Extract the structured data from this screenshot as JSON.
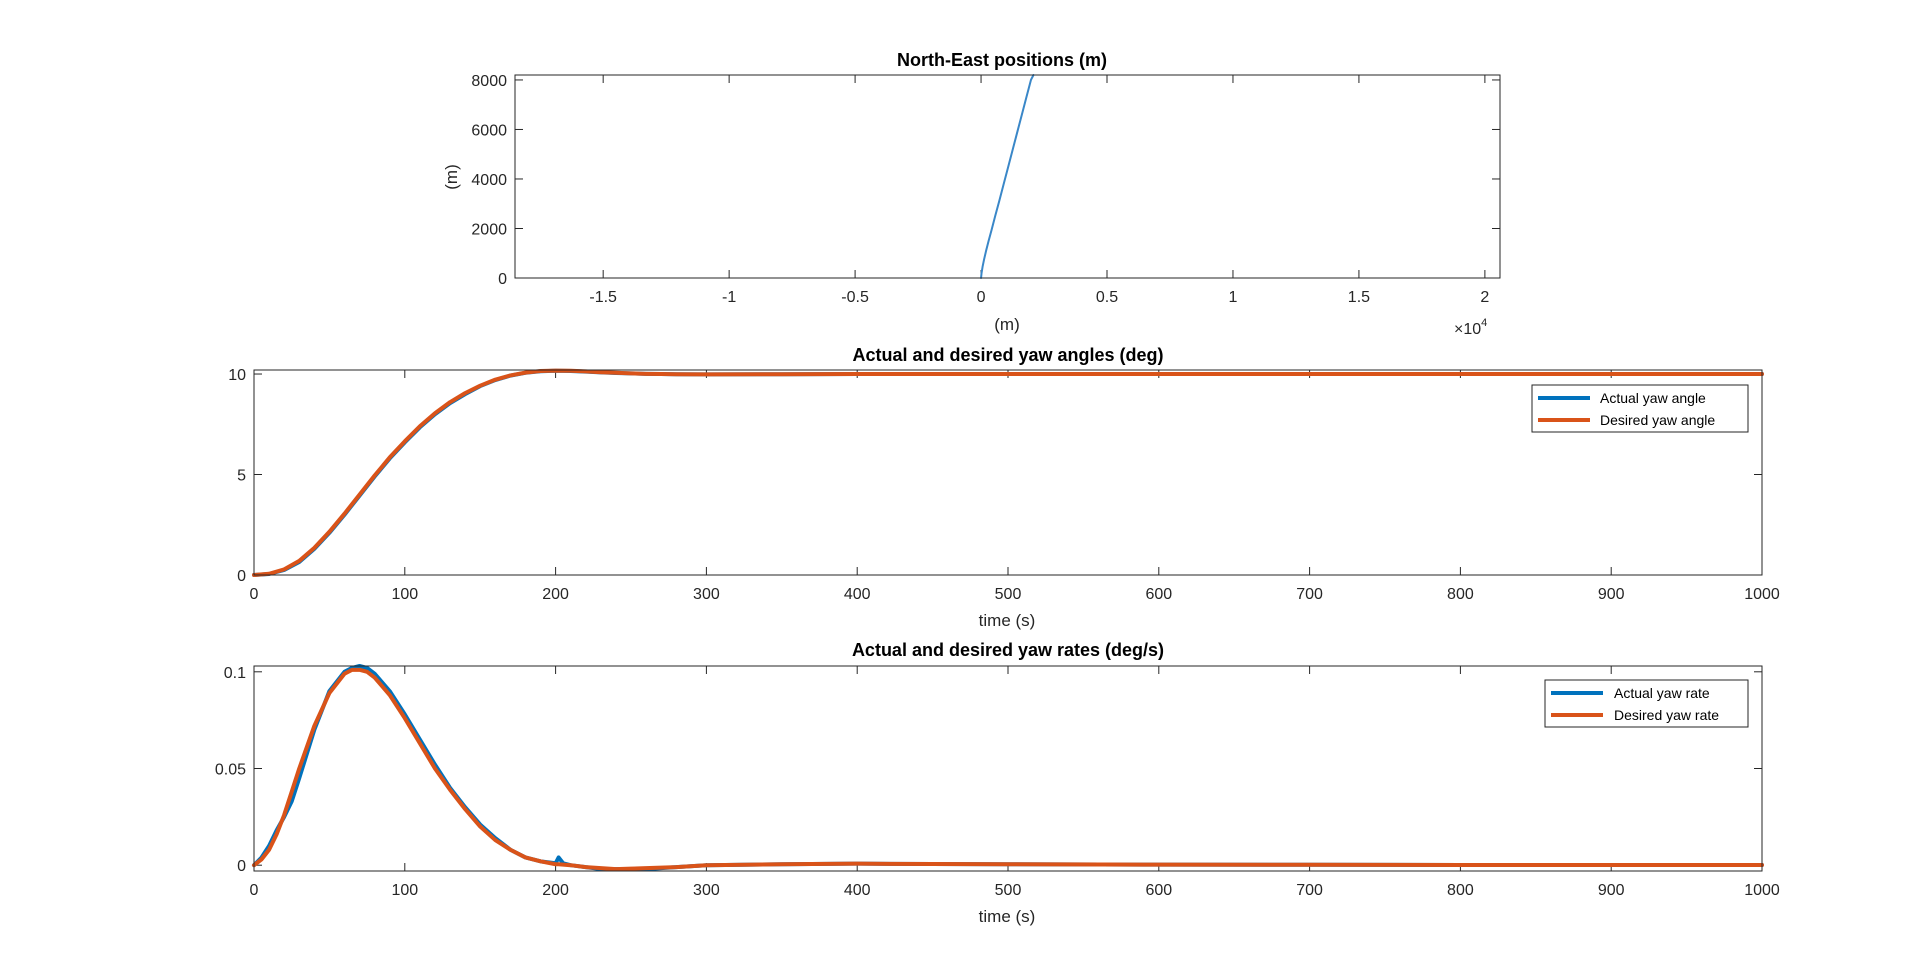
{
  "chart_data": [
    {
      "type": "line",
      "title": "North-East positions (m)",
      "xlabel": "(m)",
      "ylabel": "(m)",
      "xlim": [
        -18500,
        20600
      ],
      "ylim": [
        0,
        8200
      ],
      "x_exponent_label": "×10",
      "x_exponent_power": "4",
      "xticks": [
        -15000,
        -10000,
        -5000,
        0,
        5000,
        10000,
        15000,
        20000
      ],
      "xtick_labels": [
        "-1.5",
        "-1",
        "-0.5",
        "0",
        "0.5",
        "1",
        "1.5",
        "2"
      ],
      "yticks": [
        0,
        2000,
        4000,
        6000,
        8000
      ],
      "ytick_labels": [
        "0",
        "2000",
        "4000",
        "6000",
        "8000"
      ],
      "grid": false,
      "colors": [
        "#3a87c8"
      ],
      "series": [
        {
          "x": [
            0,
            20,
            60,
            120,
            200,
            300,
            420,
            560,
            720,
            900,
            1080,
            1260,
            1440,
            1620,
            1800,
            1980,
            2080
          ],
          "y": [
            0,
            200,
            450,
            750,
            1100,
            1500,
            1950,
            2500,
            3100,
            3800,
            4500,
            5200,
            5900,
            6600,
            7300,
            8000,
            8200
          ]
        }
      ]
    },
    {
      "type": "line",
      "title": "Actual and desired yaw angles (deg)",
      "xlabel": "time (s)",
      "ylabel": "",
      "xlim": [
        0,
        1000
      ],
      "ylim": [
        0,
        10.2
      ],
      "xticks": [
        0,
        100,
        200,
        300,
        400,
        500,
        600,
        700,
        800,
        900,
        1000
      ],
      "xtick_labels": [
        "0",
        "100",
        "200",
        "300",
        "400",
        "500",
        "600",
        "700",
        "800",
        "900",
        "1000"
      ],
      "yticks": [
        0,
        5,
        10
      ],
      "ytick_labels": [
        "0",
        "5",
        "10"
      ],
      "grid": false,
      "legend_position": "top-right",
      "colors": [
        "#0072bd",
        "#d95319"
      ],
      "x": [
        0,
        10,
        20,
        30,
        40,
        50,
        60,
        70,
        80,
        90,
        100,
        110,
        120,
        130,
        140,
        150,
        160,
        170,
        180,
        190,
        200,
        210,
        220,
        230,
        240,
        250,
        260,
        270,
        280,
        300,
        350,
        400,
        450,
        500,
        600,
        700,
        800,
        900,
        1000
      ],
      "series": [
        {
          "name": "Actual yaw angle",
          "values": [
            0,
            0.05,
            0.25,
            0.65,
            1.3,
            2.1,
            3.0,
            3.95,
            4.9,
            5.8,
            6.6,
            7.35,
            8.0,
            8.55,
            9.0,
            9.4,
            9.7,
            9.92,
            10.06,
            10.14,
            10.16,
            10.15,
            10.12,
            10.08,
            10.05,
            10.03,
            10.01,
            10.0,
            9.99,
            9.98,
            9.99,
            10.0,
            10.0,
            10.0,
            10.0,
            10.0,
            10.0,
            10.0,
            10.0
          ]
        },
        {
          "name": "Desired yaw angle",
          "values": [
            0,
            0.06,
            0.28,
            0.7,
            1.35,
            2.15,
            3.05,
            4.0,
            4.95,
            5.85,
            6.65,
            7.4,
            8.05,
            8.6,
            9.05,
            9.42,
            9.72,
            9.93,
            10.07,
            10.15,
            10.17,
            10.16,
            10.13,
            10.09,
            10.06,
            10.03,
            10.01,
            10.0,
            9.99,
            9.98,
            9.99,
            10.0,
            10.0,
            10.0,
            10.0,
            10.0,
            10.0,
            10.0,
            10.0
          ]
        }
      ]
    },
    {
      "type": "line",
      "title": "Actual and desired yaw rates (deg/s)",
      "xlabel": "time (s)",
      "ylabel": "",
      "xlim": [
        0,
        1000
      ],
      "ylim": [
        -0.003,
        0.103
      ],
      "xticks": [
        0,
        100,
        200,
        300,
        400,
        500,
        600,
        700,
        800,
        900,
        1000
      ],
      "xtick_labels": [
        "0",
        "100",
        "200",
        "300",
        "400",
        "500",
        "600",
        "700",
        "800",
        "900",
        "1000"
      ],
      "yticks": [
        0,
        0.05,
        0.1
      ],
      "ytick_labels": [
        "0",
        "0.05",
        "0.1"
      ],
      "grid": false,
      "legend_position": "top-right",
      "colors": [
        "#0072bd",
        "#d95319"
      ],
      "x": [
        0,
        5,
        10,
        15,
        20,
        25,
        30,
        40,
        50,
        60,
        65,
        70,
        75,
        80,
        90,
        100,
        110,
        120,
        130,
        140,
        150,
        160,
        170,
        180,
        190,
        200,
        202,
        205,
        210,
        220,
        230,
        240,
        250,
        260,
        280,
        300,
        350,
        400,
        450,
        500,
        600,
        700,
        800,
        900,
        1000
      ],
      "series": [
        {
          "name": "Actual yaw rate",
          "values": [
            0.0,
            0.004,
            0.01,
            0.018,
            0.025,
            0.033,
            0.045,
            0.07,
            0.09,
            0.1,
            0.102,
            0.103,
            0.102,
            0.099,
            0.09,
            0.078,
            0.065,
            0.052,
            0.04,
            0.03,
            0.021,
            0.014,
            0.008,
            0.004,
            0.002,
            0.001,
            0.004,
            0.001,
            0.0,
            -0.001,
            -0.002,
            -0.002,
            -0.002,
            -0.002,
            -0.001,
            0.0,
            0.0005,
            0.0008,
            0.0006,
            0.0005,
            0.0003,
            0.0002,
            0.0001,
            0.0001,
            0.0001
          ]
        },
        {
          "name": "Desired yaw rate",
          "values": [
            0.0,
            0.003,
            0.008,
            0.016,
            0.026,
            0.038,
            0.05,
            0.072,
            0.089,
            0.099,
            0.101,
            0.101,
            0.1,
            0.097,
            0.088,
            0.076,
            0.063,
            0.05,
            0.039,
            0.029,
            0.02,
            0.013,
            0.008,
            0.004,
            0.002,
            0.0005,
            0.0005,
            0.0003,
            0.0,
            -0.001,
            -0.0015,
            -0.002,
            -0.0018,
            -0.0015,
            -0.001,
            0.0,
            0.0005,
            0.0008,
            0.0006,
            0.0005,
            0.0003,
            0.0002,
            0.0001,
            0.0001,
            0.0001
          ]
        }
      ]
    }
  ]
}
